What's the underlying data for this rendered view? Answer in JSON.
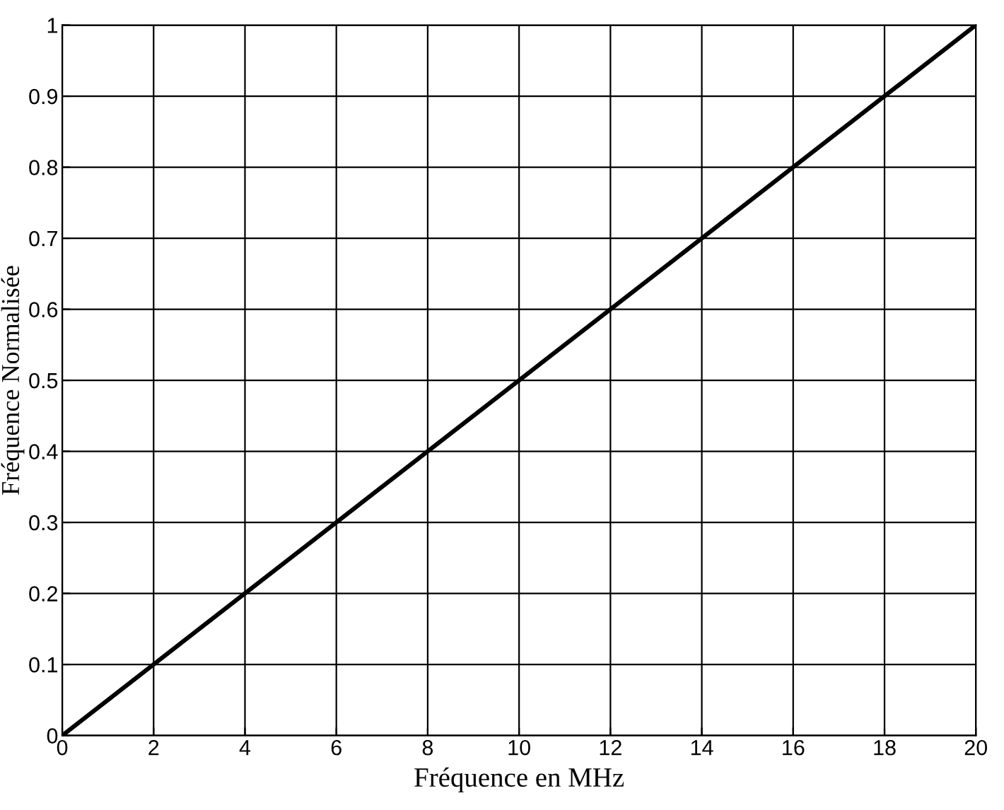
{
  "chart_data": {
    "type": "line",
    "xlabel": "Fréquence en MHz",
    "ylabel": "Fréquence Normalisée",
    "x": [
      0,
      20
    ],
    "series": [
      {
        "color": "#000000",
        "values": [
          0,
          1
        ]
      }
    ],
    "xlim": [
      0,
      20
    ],
    "ylim": [
      0,
      1
    ],
    "xticks": [
      0,
      2,
      4,
      6,
      8,
      10,
      12,
      14,
      16,
      18,
      20
    ],
    "yticks": [
      0,
      0.1,
      0.2,
      0.3,
      0.4,
      0.5,
      0.6,
      0.7,
      0.8,
      0.9,
      1
    ],
    "grid": true,
    "marker": "none",
    "line_style": "solid"
  }
}
